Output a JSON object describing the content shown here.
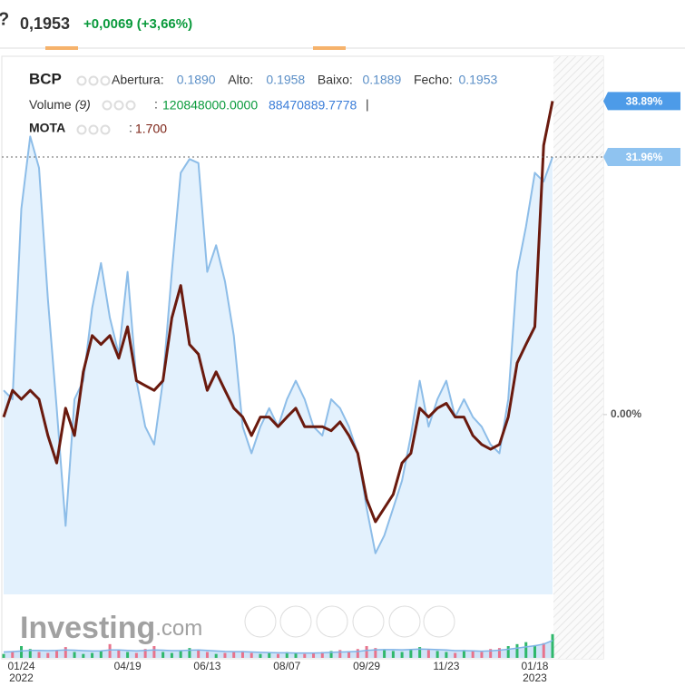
{
  "header": {
    "price": "0,1953",
    "change": "+0,0069 (+3,66%)"
  },
  "legend": {
    "symbol": "BCP",
    "fields": [
      {
        "label": "Abertura:",
        "value": "0.1890"
      },
      {
        "label": "Alto:",
        "value": "0.1958"
      },
      {
        "label": "Baixo:",
        "value": "0.1889"
      },
      {
        "label": "Fecho:",
        "value": "0.1953"
      }
    ],
    "separator": ":",
    "volume": {
      "label": "Volume",
      "period": "(9)",
      "values": [
        "120848000.0000",
        "88470889.7778"
      ],
      "cursor": "|"
    },
    "compare": {
      "label": "MOTA",
      "value": "1.700"
    }
  },
  "watermark": {
    "brand": "Investing",
    "suffix": ".com"
  },
  "chart_data": {
    "type": "line",
    "categories": [
      null,
      null,
      "01/24",
      null,
      null,
      null,
      null,
      null,
      null,
      null,
      null,
      null,
      null,
      null,
      "04/19",
      null,
      null,
      null,
      null,
      null,
      null,
      null,
      null,
      "06/13",
      null,
      null,
      null,
      null,
      null,
      null,
      null,
      null,
      "08/07",
      null,
      null,
      null,
      null,
      null,
      null,
      null,
      null,
      "09/29",
      null,
      null,
      null,
      null,
      null,
      null,
      null,
      null,
      "11/23",
      null,
      null,
      null,
      null,
      null,
      null,
      null,
      null,
      null,
      "01/18",
      null,
      null
    ],
    "x_years": {
      "01/24": "2022",
      "01/18": "2023"
    },
    "series": [
      {
        "name": "BCP",
        "color": "#8dbde8",
        "fill": "#e3f1fd",
        "badge_color": "#8fc3f0",
        "values": [
          3.0,
          1.9,
          25.5,
          34.5,
          30.6,
          14.3,
          0.8,
          -13.8,
          1.9,
          4.2,
          13.2,
          18.8,
          12.0,
          7.5,
          17.7,
          4.2,
          -1.5,
          -3.7,
          4.2,
          17.7,
          30.0,
          31.7,
          31.2,
          17.7,
          21.0,
          16.5,
          9.8,
          -1.5,
          -4.8,
          -1.5,
          0.8,
          -1.5,
          1.9,
          4.2,
          1.9,
          -1.5,
          -2.6,
          1.9,
          0.8,
          -1.5,
          -4.8,
          -11.6,
          -17.2,
          -15.0,
          -11.6,
          -8.2,
          -2.6,
          4.2,
          -1.5,
          1.9,
          4.2,
          -0.3,
          1.9,
          -0.3,
          -1.5,
          -3.7,
          -4.8,
          1.9,
          17.7,
          23.3,
          30.0,
          28.9,
          31.96
        ],
        "value_labels": [
          null,
          null,
          null,
          null,
          null,
          null,
          null,
          null,
          null,
          null,
          null,
          null,
          null,
          null,
          null,
          null,
          null,
          null,
          null,
          null,
          null,
          null,
          null,
          null,
          null,
          null,
          null,
          null,
          null,
          null,
          null,
          null,
          null,
          null,
          null,
          null,
          null,
          null,
          null,
          null,
          null,
          null,
          null,
          null,
          null,
          null,
          null,
          null,
          null,
          null,
          null,
          null,
          null,
          null,
          null,
          null,
          null,
          null,
          null,
          null,
          null,
          null,
          "31.96%"
        ]
      },
      {
        "name": "MOTA",
        "color": "#6a1a0e",
        "badge_color": "#4d9be8",
        "values": [
          -0.3,
          3.0,
          1.9,
          3.0,
          1.9,
          -2.6,
          -6.0,
          0.8,
          -2.6,
          5.3,
          9.8,
          8.7,
          9.8,
          7.0,
          10.9,
          4.2,
          3.6,
          3.0,
          4.2,
          12.0,
          16.0,
          8.7,
          7.5,
          3.0,
          5.3,
          3.0,
          0.8,
          -0.3,
          -2.6,
          -0.3,
          -0.3,
          -1.5,
          -0.3,
          0.8,
          -1.5,
          -1.5,
          -1.5,
          -2.0,
          -0.9,
          -2.6,
          -4.8,
          -10.5,
          -13.3,
          -11.6,
          -9.9,
          -6.0,
          -4.8,
          0.8,
          -0.3,
          0.8,
          1.4,
          -0.3,
          -0.3,
          -2.6,
          -3.7,
          -4.3,
          -3.7,
          -0.3,
          6.4,
          8.7,
          10.9,
          33.4,
          38.89
        ],
        "value_labels": [
          null,
          null,
          null,
          null,
          null,
          null,
          null,
          null,
          null,
          null,
          null,
          null,
          null,
          null,
          null,
          null,
          null,
          null,
          null,
          null,
          null,
          null,
          null,
          null,
          null,
          null,
          null,
          null,
          null,
          null,
          null,
          null,
          null,
          null,
          null,
          null,
          null,
          null,
          null,
          null,
          null,
          null,
          null,
          null,
          null,
          null,
          null,
          null,
          null,
          null,
          null,
          null,
          null,
          null,
          null,
          null,
          null,
          null,
          null,
          null,
          null,
          null,
          "38.89%"
        ]
      }
    ],
    "ylim": [
      -22.3,
      44.45
    ],
    "yticks": [
      {
        "value": 0,
        "label": "0.00%"
      }
    ],
    "volume": {
      "up_color": "#2fb86b",
      "down_color": "#e8738c",
      "ma_color": "#7fb3e6",
      "ma_fill": "#cfe3f7",
      "ylim": [
        0,
        300000000
      ],
      "values": [
        20000000,
        35000000,
        60000000,
        45000000,
        30000000,
        25000000,
        40000000,
        55000000,
        30000000,
        20000000,
        25000000,
        35000000,
        70000000,
        40000000,
        30000000,
        25000000,
        45000000,
        60000000,
        30000000,
        25000000,
        35000000,
        50000000,
        40000000,
        30000000,
        20000000,
        25000000,
        30000000,
        35000000,
        25000000,
        20000000,
        25000000,
        20000000,
        30000000,
        25000000,
        20000000,
        25000000,
        30000000,
        35000000,
        40000000,
        30000000,
        45000000,
        60000000,
        50000000,
        40000000,
        35000000,
        30000000,
        45000000,
        55000000,
        40000000,
        35000000,
        30000000,
        25000000,
        40000000,
        35000000,
        30000000,
        45000000,
        50000000,
        60000000,
        70000000,
        80000000,
        65000000,
        75000000,
        120848000
      ],
      "ma": [
        30000000,
        32000000,
        35000000,
        38000000,
        38000000,
        37000000,
        38000000,
        40000000,
        39000000,
        37000000,
        35000000,
        36000000,
        40000000,
        40000000,
        38000000,
        36000000,
        38000000,
        40000000,
        39000000,
        37000000,
        37000000,
        39000000,
        40000000,
        38000000,
        35000000,
        33000000,
        32000000,
        32000000,
        30000000,
        28000000,
        27000000,
        26000000,
        26000000,
        25000000,
        25000000,
        25000000,
        26000000,
        28000000,
        30000000,
        31000000,
        33000000,
        38000000,
        41000000,
        42000000,
        42000000,
        41000000,
        43000000,
        45000000,
        44000000,
        42000000,
        40000000,
        37000000,
        37000000,
        36000000,
        34000000,
        36000000,
        39000000,
        44000000,
        50000000,
        56000000,
        62000000,
        70000000,
        88470889.7778
      ]
    }
  }
}
